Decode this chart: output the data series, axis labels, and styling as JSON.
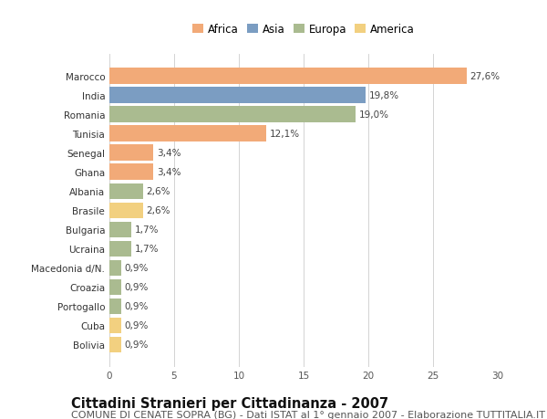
{
  "countries": [
    "Marocco",
    "India",
    "Romania",
    "Tunisia",
    "Senegal",
    "Ghana",
    "Albania",
    "Brasile",
    "Bulgaria",
    "Ucraina",
    "Macedonia d/N.",
    "Croazia",
    "Portogallo",
    "Cuba",
    "Bolivia"
  ],
  "values": [
    27.6,
    19.8,
    19.0,
    12.1,
    3.4,
    3.4,
    2.6,
    2.6,
    1.7,
    1.7,
    0.9,
    0.9,
    0.9,
    0.9,
    0.9
  ],
  "labels": [
    "27,6%",
    "19,8%",
    "19,0%",
    "12,1%",
    "3,4%",
    "3,4%",
    "2,6%",
    "2,6%",
    "1,7%",
    "1,7%",
    "0,9%",
    "0,9%",
    "0,9%",
    "0,9%",
    "0,9%"
  ],
  "continents": [
    "Africa",
    "Asia",
    "Europa",
    "Africa",
    "Africa",
    "Africa",
    "Europa",
    "America",
    "Europa",
    "Europa",
    "Europa",
    "Europa",
    "Europa",
    "America",
    "America"
  ],
  "colors": {
    "Africa": "#F2AA78",
    "Asia": "#7B9DC2",
    "Europa": "#AABB90",
    "America": "#F2D080"
  },
  "legend_order": [
    "Africa",
    "Asia",
    "Europa",
    "America"
  ],
  "title": "Cittadini Stranieri per Cittadinanza - 2007",
  "subtitle": "COMUNE DI CENATE SOPRA (BG) - Dati ISTAT al 1° gennaio 2007 - Elaborazione TUTTITALIA.IT",
  "xlim": [
    0,
    30
  ],
  "xticks": [
    0,
    5,
    10,
    15,
    20,
    25,
    30
  ],
  "bg_color": "#ffffff",
  "bar_height": 0.82,
  "title_fontsize": 10.5,
  "subtitle_fontsize": 8,
  "label_fontsize": 7.5,
  "tick_fontsize": 7.5,
  "legend_fontsize": 8.5
}
